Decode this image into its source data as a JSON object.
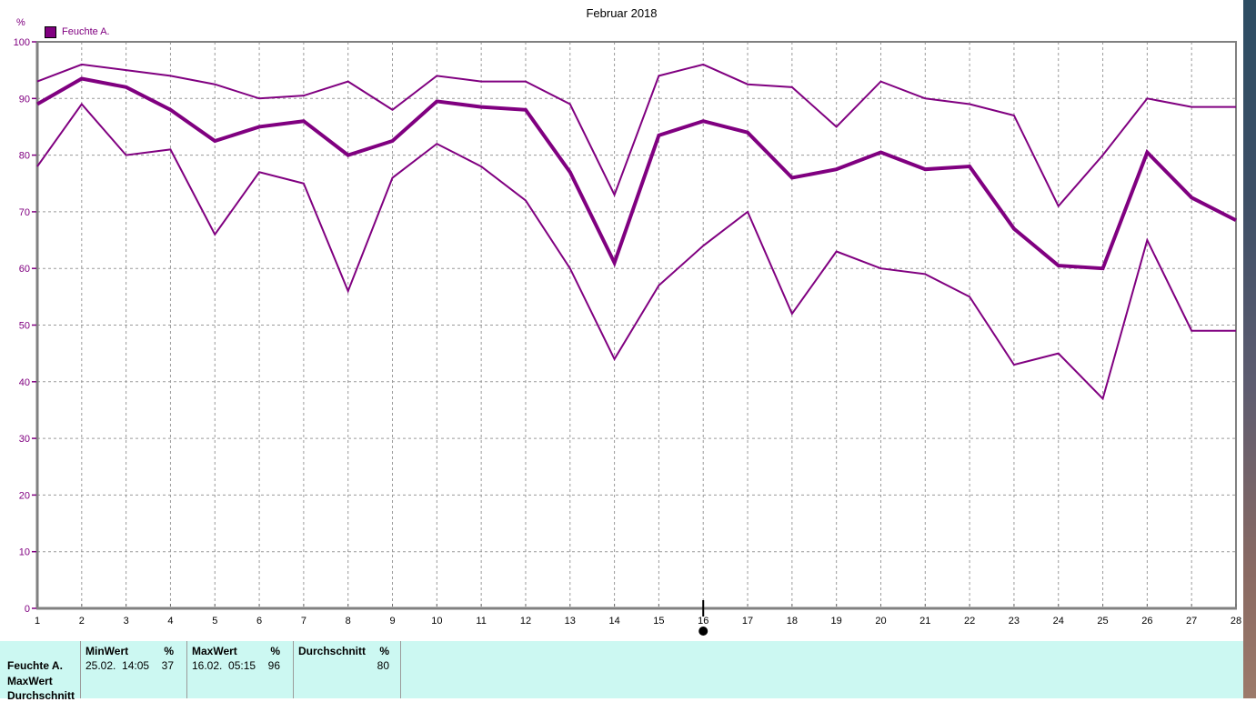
{
  "chart": {
    "title": "Februar 2018",
    "y_unit": "%",
    "legend_label": "Feuchte A."
  },
  "chart_data": {
    "type": "line",
    "title": "Februar 2018",
    "ylabel": "%",
    "xlabel": "",
    "ylim": [
      0,
      100
    ],
    "yticks": [
      0,
      10,
      20,
      30,
      40,
      50,
      60,
      70,
      80,
      90,
      100
    ],
    "grid": true,
    "legend": [
      "Feuchte A."
    ],
    "legend_position": "top-left",
    "cursor_day": 16,
    "x": [
      1,
      2,
      3,
      4,
      5,
      6,
      7,
      8,
      9,
      10,
      11,
      12,
      13,
      14,
      15,
      16,
      17,
      18,
      19,
      20,
      21,
      22,
      23,
      24,
      25,
      26,
      27,
      28
    ],
    "series": [
      {
        "name": "daily-maximum",
        "width": 2,
        "values": [
          93,
          96,
          95,
          94,
          92.5,
          90,
          90.5,
          93,
          88,
          94,
          93,
          93,
          89,
          73,
          94,
          96,
          92.5,
          92,
          85,
          93,
          90,
          89,
          87,
          71,
          80,
          90,
          88.5,
          88.5
        ]
      },
      {
        "name": "daily-average",
        "width": 4,
        "values": [
          89,
          93.5,
          92,
          88,
          82.5,
          85,
          86,
          80,
          82.5,
          89.5,
          88.5,
          88,
          77,
          61,
          83.5,
          86,
          84,
          76,
          77.5,
          80.5,
          77.5,
          78,
          67,
          60.5,
          60,
          80.5,
          72.5,
          68.5
        ]
      },
      {
        "name": "daily-minimum",
        "width": 2,
        "values": [
          78,
          89,
          80,
          81,
          66,
          77,
          75,
          56,
          76,
          82,
          78,
          72,
          60,
          44,
          57,
          64,
          70,
          52,
          63,
          60,
          59,
          55,
          43,
          45,
          37,
          65,
          49,
          49
        ]
      }
    ]
  },
  "table": {
    "series_label": "Feuchte A.",
    "row_maxwert_label": "MaxWert",
    "row_durchschnitt_label": "Durchschnitt",
    "min": {
      "header": "MinWert",
      "unit": "%",
      "datetime": "25.02.  14:05",
      "value": "37"
    },
    "max": {
      "header": "MaxWert",
      "unit": "%",
      "datetime": "16.02.  05:15",
      "value": "96"
    },
    "avg": {
      "header": "Durchschnitt",
      "unit": "%",
      "value": "80"
    }
  },
  "colors": {
    "line": "#800080",
    "axis_text": "#800080",
    "x_label": "#000000",
    "frame": "#808080",
    "grid": "#9a9a9a",
    "table_bg": "#ccf8f2",
    "table_divider": "#9b9b9b",
    "cursor": "#000000",
    "strip_top": "#2d4d63",
    "strip_bottom": "#9c7a6a"
  }
}
